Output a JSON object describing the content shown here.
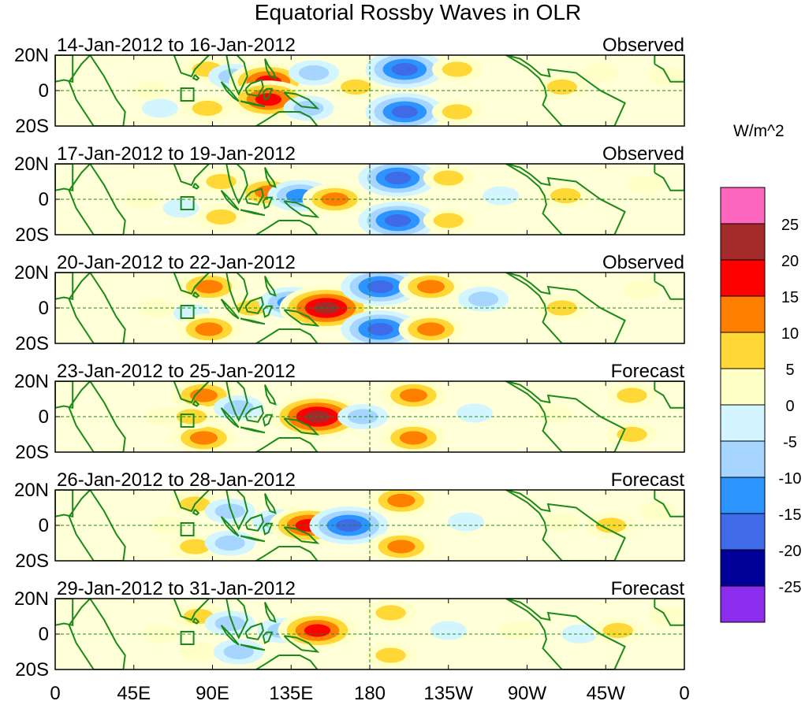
{
  "chart_data": {
    "type": "heatmap",
    "title": "Equatorial Rossby Waves in OLR",
    "units": "W/m^2",
    "x_ticks": [
      "0",
      "45E",
      "90E",
      "135E",
      "180",
      "135W",
      "90W",
      "45W",
      "0"
    ],
    "x_tick_lon": [
      0,
      45,
      90,
      135,
      180,
      225,
      270,
      315,
      360
    ],
    "y_ticks": [
      "20N",
      "0",
      "20S"
    ],
    "y_tick_lat": [
      20,
      0,
      -20
    ],
    "xlim": [
      0,
      360
    ],
    "ylim": [
      -20,
      20
    ],
    "colorbar": {
      "levels": [
        25,
        20,
        15,
        10,
        5,
        0,
        -5,
        -10,
        -15,
        -20,
        -25
      ],
      "labels": [
        "25",
        "20",
        "15",
        "10",
        "5",
        "0",
        "-5",
        "-10",
        "-15",
        "-20",
        "-25"
      ],
      "colors": [
        "#ff66c0",
        "#a52a2a",
        "#ff0000",
        "#ff7f00",
        "#ffd835",
        "#ffffc8",
        "#d3f5ff",
        "#a6d6ff",
        "#2b94ff",
        "#3f6be8",
        "#000099",
        "#8c2ced"
      ]
    },
    "panels": [
      {
        "period": "14-Jan-2012 to 16-Jan-2012",
        "status": "Observed",
        "anomalies": [
          {
            "lon": 55,
            "lat": 0,
            "value": 4
          },
          {
            "lon": 60,
            "lat": -10,
            "value": -4
          },
          {
            "lon": 87,
            "lat": 12,
            "value": 10
          },
          {
            "lon": 87,
            "lat": -10,
            "value": 8
          },
          {
            "lon": 102,
            "lat": 8,
            "value": -8
          },
          {
            "lon": 110,
            "lat": -6,
            "value": -6
          },
          {
            "lon": 122,
            "lat": 5,
            "value": 18
          },
          {
            "lon": 122,
            "lat": -5,
            "value": 18
          },
          {
            "lon": 148,
            "lat": 10,
            "value": -10
          },
          {
            "lon": 145,
            "lat": -10,
            "value": -10
          },
          {
            "lon": 172,
            "lat": 2,
            "value": 8
          },
          {
            "lon": 200,
            "lat": 12,
            "value": -20
          },
          {
            "lon": 200,
            "lat": -12,
            "value": -20
          },
          {
            "lon": 230,
            "lat": 12,
            "value": 12
          },
          {
            "lon": 230,
            "lat": -12,
            "value": 12
          },
          {
            "lon": 290,
            "lat": 2,
            "value": 8
          },
          {
            "lon": 312,
            "lat": 10,
            "value": 6
          },
          {
            "lon": 350,
            "lat": 8,
            "value": 6
          }
        ]
      },
      {
        "period": "17-Jan-2012 to 19-Jan-2012",
        "status": "Observed",
        "anomalies": [
          {
            "lon": 50,
            "lat": 0,
            "value": 6
          },
          {
            "lon": 72,
            "lat": -5,
            "value": -5
          },
          {
            "lon": 95,
            "lat": 10,
            "value": 8
          },
          {
            "lon": 95,
            "lat": -10,
            "value": 8
          },
          {
            "lon": 122,
            "lat": 4,
            "value": 15
          },
          {
            "lon": 140,
            "lat": 2,
            "value": -15
          },
          {
            "lon": 160,
            "lat": 0,
            "value": 15
          },
          {
            "lon": 196,
            "lat": 12,
            "value": -20
          },
          {
            "lon": 196,
            "lat": -12,
            "value": -20
          },
          {
            "lon": 225,
            "lat": 12,
            "value": 12
          },
          {
            "lon": 225,
            "lat": -12,
            "value": 12
          },
          {
            "lon": 255,
            "lat": 2,
            "value": -5
          },
          {
            "lon": 292,
            "lat": 2,
            "value": 8
          },
          {
            "lon": 338,
            "lat": 8,
            "value": 6
          }
        ]
      },
      {
        "period": "20-Jan-2012 to 22-Jan-2012",
        "status": "Observed",
        "anomalies": [
          {
            "lon": 58,
            "lat": 0,
            "value": 6
          },
          {
            "lon": 78,
            "lat": -3,
            "value": -5
          },
          {
            "lon": 88,
            "lat": 12,
            "value": 15
          },
          {
            "lon": 88,
            "lat": -12,
            "value": 15
          },
          {
            "lon": 112,
            "lat": 0,
            "value": 10
          },
          {
            "lon": 135,
            "lat": 3,
            "value": -15
          },
          {
            "lon": 155,
            "lat": 0,
            "value": 25
          },
          {
            "lon": 186,
            "lat": 12,
            "value": -20
          },
          {
            "lon": 186,
            "lat": -12,
            "value": -20
          },
          {
            "lon": 215,
            "lat": 12,
            "value": 15
          },
          {
            "lon": 215,
            "lat": -12,
            "value": 15
          },
          {
            "lon": 245,
            "lat": 5,
            "value": -8
          },
          {
            "lon": 290,
            "lat": 0,
            "value": 8
          },
          {
            "lon": 335,
            "lat": 10,
            "value": 6
          }
        ]
      },
      {
        "period": "23-Jan-2012 to 25-Jan-2012",
        "status": "Forecast",
        "anomalies": [
          {
            "lon": 62,
            "lat": 0,
            "value": 4
          },
          {
            "lon": 85,
            "lat": 12,
            "value": 15
          },
          {
            "lon": 85,
            "lat": -12,
            "value": 15
          },
          {
            "lon": 78,
            "lat": 0,
            "value": 10
          },
          {
            "lon": 105,
            "lat": 5,
            "value": -8
          },
          {
            "lon": 138,
            "lat": 2,
            "value": -10
          },
          {
            "lon": 150,
            "lat": 0,
            "value": 25
          },
          {
            "lon": 176,
            "lat": 0,
            "value": -12
          },
          {
            "lon": 205,
            "lat": 12,
            "value": 15
          },
          {
            "lon": 205,
            "lat": -12,
            "value": 15
          },
          {
            "lon": 240,
            "lat": 2,
            "value": -5
          },
          {
            "lon": 285,
            "lat": 2,
            "value": 6
          },
          {
            "lon": 330,
            "lat": 12,
            "value": 8
          },
          {
            "lon": 330,
            "lat": -10,
            "value": 8
          }
        ]
      },
      {
        "period": "26-Jan-2012 to 28-Jan-2012",
        "status": "Forecast",
        "anomalies": [
          {
            "lon": 65,
            "lat": 0,
            "value": 6
          },
          {
            "lon": 80,
            "lat": 12,
            "value": 10
          },
          {
            "lon": 80,
            "lat": -12,
            "value": 8
          },
          {
            "lon": 100,
            "lat": 8,
            "value": -12
          },
          {
            "lon": 100,
            "lat": -10,
            "value": -10
          },
          {
            "lon": 127,
            "lat": 2,
            "value": -12
          },
          {
            "lon": 145,
            "lat": 0,
            "value": 20
          },
          {
            "lon": 168,
            "lat": 0,
            "value": -20
          },
          {
            "lon": 198,
            "lat": 14,
            "value": 15
          },
          {
            "lon": 198,
            "lat": -12,
            "value": 15
          },
          {
            "lon": 235,
            "lat": 2,
            "value": -5
          },
          {
            "lon": 290,
            "lat": 2,
            "value": 6
          },
          {
            "lon": 318,
            "lat": 0,
            "value": 8
          },
          {
            "lon": 345,
            "lat": 8,
            "value": 6
          }
        ]
      },
      {
        "period": "29-Jan-2012 to 31-Jan-2012",
        "status": "Forecast",
        "anomalies": [
          {
            "lon": 60,
            "lat": 0,
            "value": 6
          },
          {
            "lon": 82,
            "lat": 10,
            "value": 8
          },
          {
            "lon": 82,
            "lat": -10,
            "value": 6
          },
          {
            "lon": 100,
            "lat": 6,
            "value": -10
          },
          {
            "lon": 105,
            "lat": -10,
            "value": -12
          },
          {
            "lon": 130,
            "lat": 2,
            "value": -12
          },
          {
            "lon": 150,
            "lat": 2,
            "value": 18
          },
          {
            "lon": 192,
            "lat": 12,
            "value": 10
          },
          {
            "lon": 192,
            "lat": -12,
            "value": 10
          },
          {
            "lon": 225,
            "lat": 2,
            "value": -5
          },
          {
            "lon": 265,
            "lat": 2,
            "value": 6
          },
          {
            "lon": 300,
            "lat": 0,
            "value": -5
          },
          {
            "lon": 322,
            "lat": 2,
            "value": 8
          },
          {
            "lon": 350,
            "lat": 10,
            "value": 6
          }
        ]
      }
    ]
  }
}
